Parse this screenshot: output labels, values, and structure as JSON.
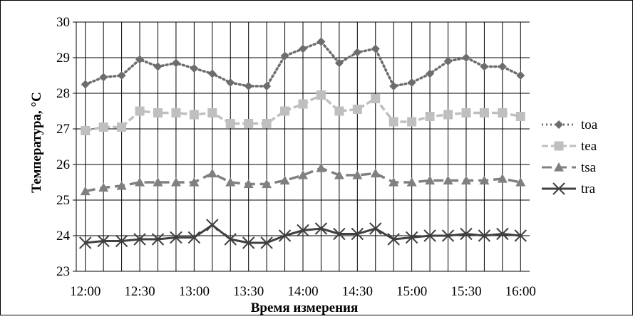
{
  "chart_data": {
    "type": "line",
    "title": "",
    "xlabel": "Время измерения",
    "ylabel": "Температура, °C",
    "ylim": [
      23,
      30
    ],
    "yticks": [
      23,
      24,
      25,
      26,
      27,
      28,
      29,
      30
    ],
    "xtick_labels": [
      "12:00",
      "12:30",
      "13:00",
      "13:30",
      "14:00",
      "14:30",
      "15:00",
      "15:30",
      "16:00"
    ],
    "x": [
      "12:00",
      "12:10",
      "12:20",
      "12:30",
      "12:40",
      "12:50",
      "13:00",
      "13:10",
      "13:20",
      "13:30",
      "13:40",
      "13:50",
      "14:00",
      "14:10",
      "14:20",
      "14:30",
      "14:40",
      "14:50",
      "15:00",
      "15:10",
      "15:20",
      "15:30",
      "15:40",
      "15:50",
      "16:00"
    ],
    "grid": "vertical and horizontal",
    "legend_position": "right",
    "series": [
      {
        "name": "toa",
        "color": "#6d6d6d",
        "line_style": "dotted",
        "marker": "diamond",
        "values": [
          28.25,
          28.45,
          28.5,
          28.95,
          28.75,
          28.85,
          28.7,
          28.55,
          28.3,
          28.2,
          28.2,
          29.05,
          29.25,
          29.45,
          28.85,
          29.15,
          29.25,
          28.2,
          28.3,
          28.55,
          28.9,
          29.0,
          28.75,
          28.75,
          28.5
        ]
      },
      {
        "name": "tea",
        "color": "#bfbfbf",
        "line_style": "dashed",
        "marker": "square",
        "values": [
          26.95,
          27.05,
          27.05,
          27.5,
          27.45,
          27.45,
          27.4,
          27.45,
          27.15,
          27.15,
          27.15,
          27.5,
          27.7,
          27.95,
          27.5,
          27.55,
          27.85,
          27.2,
          27.2,
          27.35,
          27.4,
          27.45,
          27.45,
          27.45,
          27.35
        ]
      },
      {
        "name": "tsa",
        "color": "#808080",
        "line_style": "long-dash",
        "marker": "triangle",
        "values": [
          25.25,
          25.35,
          25.4,
          25.5,
          25.5,
          25.5,
          25.5,
          25.75,
          25.5,
          25.45,
          25.45,
          25.55,
          25.7,
          25.9,
          25.7,
          25.7,
          25.75,
          25.5,
          25.5,
          25.55,
          25.55,
          25.55,
          25.55,
          25.6,
          25.5
        ]
      },
      {
        "name": "tra",
        "color": "#404040",
        "line_style": "solid",
        "marker": "x",
        "values": [
          23.8,
          23.85,
          23.85,
          23.9,
          23.9,
          23.95,
          23.95,
          24.3,
          23.9,
          23.8,
          23.8,
          24.0,
          24.15,
          24.2,
          24.05,
          24.05,
          24.2,
          23.9,
          23.95,
          24.0,
          24.0,
          24.05,
          24.0,
          24.05,
          24.0
        ]
      }
    ]
  }
}
